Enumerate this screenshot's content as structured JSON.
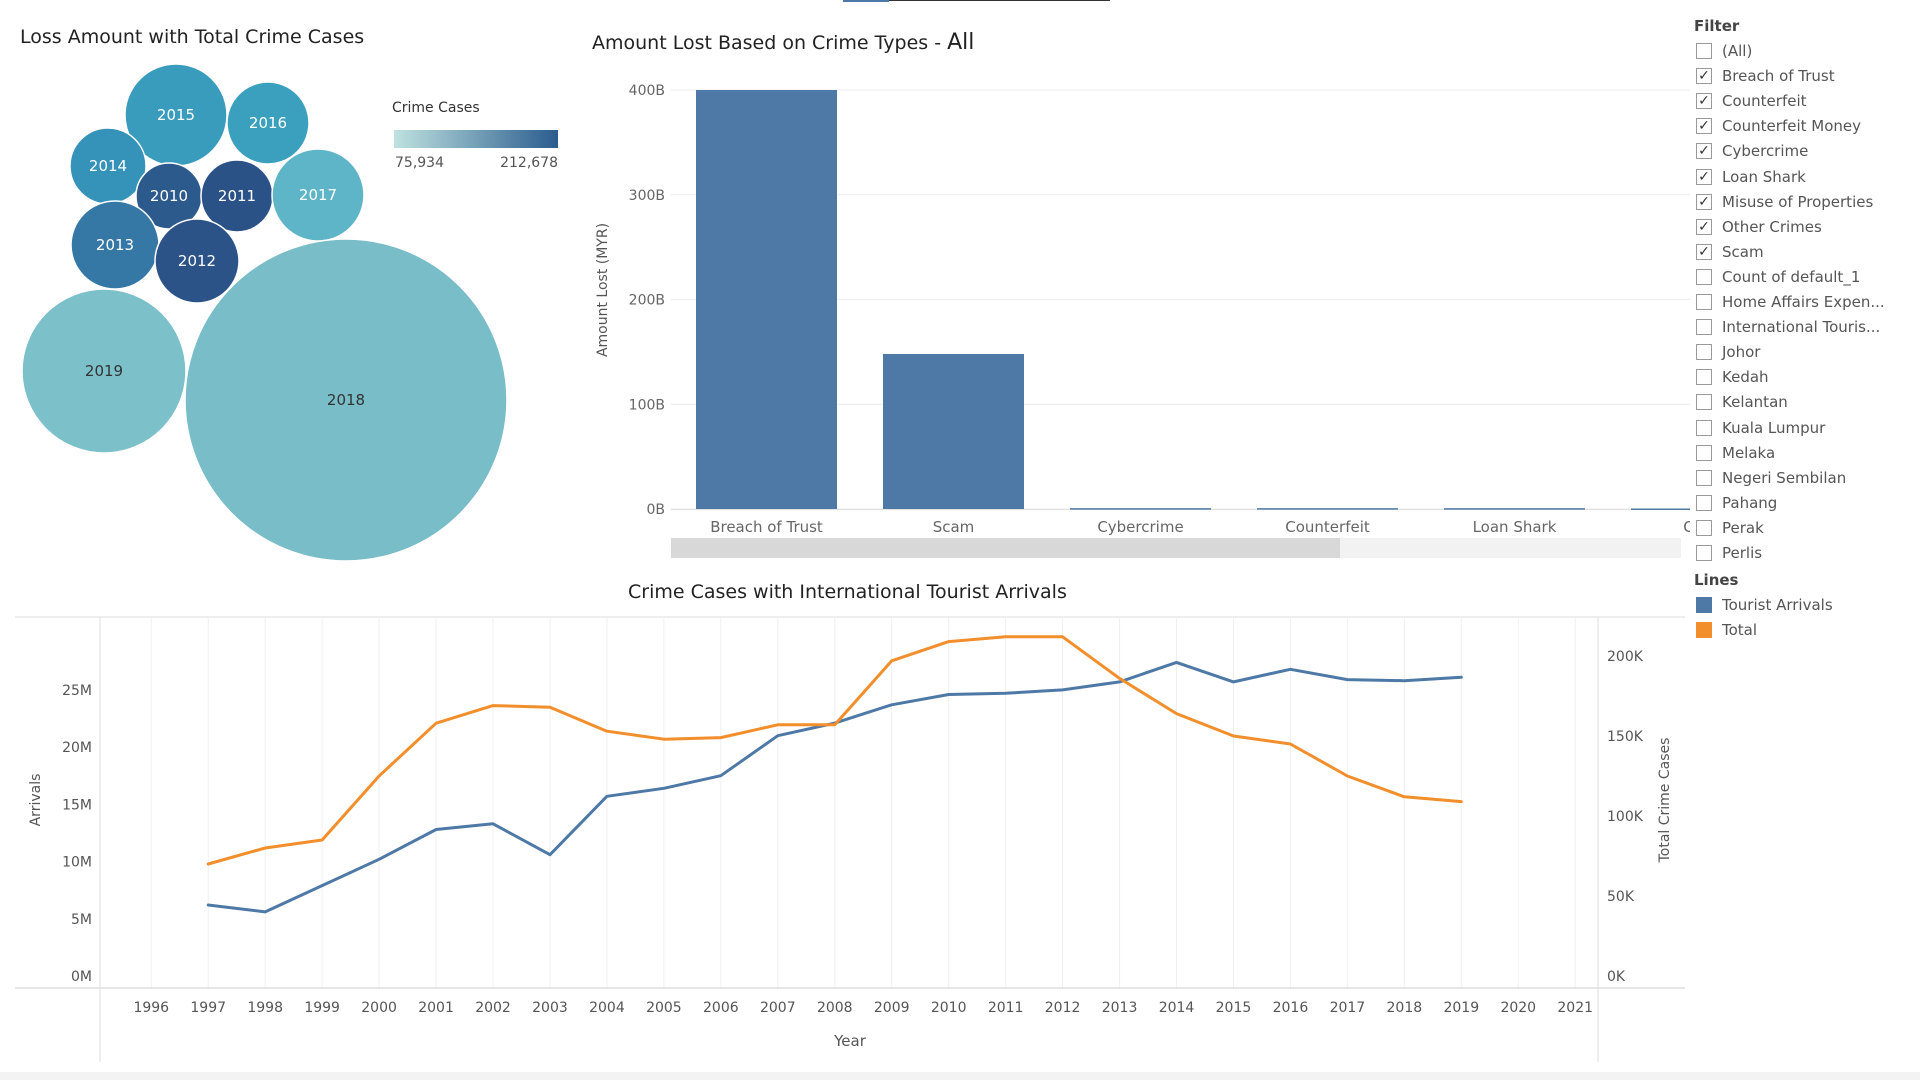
{
  "bubble": {
    "title": "Loss Amount with Total Crime Cases",
    "legend_title": "Crime Cases",
    "legend_min": "75,934",
    "legend_max": "212,678",
    "bubbles": [
      {
        "label": "2015",
        "color": "#3a9cbd"
      },
      {
        "label": "2016",
        "color": "#3aa0bd"
      },
      {
        "label": "2014",
        "color": "#3592b8"
      },
      {
        "label": "2010",
        "color": "#2d5a8c"
      },
      {
        "label": "2011",
        "color": "#2a5287"
      },
      {
        "label": "2017",
        "color": "#5fb5c8"
      },
      {
        "label": "2013",
        "color": "#3578a6"
      },
      {
        "label": "2012",
        "color": "#2b5388"
      },
      {
        "label": "2019",
        "color": "#7cc0ca"
      },
      {
        "label": "2018",
        "color": "#78bdc8"
      }
    ]
  },
  "bar": {
    "title_prefix": "Amount Lost Based on Crime Types - ",
    "title_suffix": "All",
    "ylabel": "Amount Lost (MYR)",
    "yticks": [
      "400B",
      "300B",
      "200B",
      "100B",
      "0B"
    ]
  },
  "filter": {
    "title": "Filter",
    "items": [
      {
        "label": "(All)",
        "checked": false
      },
      {
        "label": "Breach of Trust",
        "checked": true
      },
      {
        "label": "Counterfeit",
        "checked": true
      },
      {
        "label": "Counterfeit Money",
        "checked": true
      },
      {
        "label": "Cybercrime",
        "checked": true
      },
      {
        "label": "Loan Shark",
        "checked": true
      },
      {
        "label": "Misuse of Properties",
        "checked": true
      },
      {
        "label": "Other Crimes",
        "checked": true
      },
      {
        "label": "Scam",
        "checked": true
      },
      {
        "label": "Count of default_1",
        "checked": false
      },
      {
        "label": "Home Affairs Expen...",
        "checked": false
      },
      {
        "label": "International Touris...",
        "checked": false
      },
      {
        "label": "Johor",
        "checked": false
      },
      {
        "label": "Kedah",
        "checked": false
      },
      {
        "label": "Kelantan",
        "checked": false
      },
      {
        "label": "Kuala Lumpur",
        "checked": false
      },
      {
        "label": "Melaka",
        "checked": false
      },
      {
        "label": "Negeri Sembilan",
        "checked": false
      },
      {
        "label": "Pahang",
        "checked": false
      },
      {
        "label": "Perak",
        "checked": false
      },
      {
        "label": "Perlis",
        "checked": false
      }
    ]
  },
  "lines_legend": {
    "title": "Lines",
    "items": [
      {
        "label": "Tourist Arrivals",
        "color": "#4e79a7"
      },
      {
        "label": "Total",
        "color": "#f28e2b"
      }
    ]
  },
  "line": {
    "title": "Crime Cases with International Tourist Arrivals",
    "xlabel": "Year",
    "ylabel_left": "Arrivals",
    "ylabel_right": "Total Crime Cases",
    "yticks_left": [
      "25M",
      "20M",
      "15M",
      "10M",
      "5M",
      "0M"
    ],
    "yticks_right": [
      "200K",
      "150K",
      "100K",
      "50K",
      "0K"
    ]
  },
  "chart_data": [
    {
      "type": "bubble",
      "title": "Loss Amount with Total Crime Cases",
      "color_legend": "Crime Cases",
      "color_range": [
        75934,
        212678
      ],
      "labels": [
        "2010",
        "2011",
        "2012",
        "2013",
        "2014",
        "2015",
        "2016",
        "2017",
        "2018",
        "2019"
      ]
    },
    {
      "type": "bar",
      "title": "Amount Lost Based on Crime Types - All",
      "categories": [
        "Breach of Trust",
        "Scam",
        "Cybercrime",
        "Counterfeit",
        "Loan Shark",
        "Othe"
      ],
      "values": [
        400,
        148,
        0.8,
        0.8,
        0.8,
        0.5
      ],
      "value_unit": "B",
      "ylabel": "Amount Lost (MYR)",
      "ylim": [
        0,
        400
      ],
      "color": "#4e79a7",
      "grid": true
    },
    {
      "type": "line",
      "title": "Crime Cases with International Tourist Arrivals",
      "xlabel": "Year",
      "x_ticks": [
        "1996",
        "1997",
        "1998",
        "1999",
        "2000",
        "2001",
        "2002",
        "2003",
        "2004",
        "2005",
        "2006",
        "2007",
        "2008",
        "2009",
        "2010",
        "2011",
        "2012",
        "2013",
        "2014",
        "2015",
        "2016",
        "2017",
        "2018",
        "2019",
        "2020",
        "2021"
      ],
      "x": [
        1997,
        1998,
        1999,
        2000,
        2001,
        2002,
        2003,
        2004,
        2005,
        2006,
        2007,
        2008,
        2009,
        2010,
        2011,
        2012,
        2013,
        2014,
        2015,
        2016,
        2017,
        2018,
        2019
      ],
      "ylim_left": [
        0,
        29
      ],
      "ylim_right": [
        0,
        225
      ],
      "grid": true,
      "series": [
        {
          "name": "Tourist Arrivals",
          "axis": "left",
          "unit": "M",
          "color": "#4e79a7",
          "values": [
            6.2,
            5.6,
            7.9,
            10.2,
            12.8,
            13.3,
            10.6,
            15.7,
            16.4,
            17.5,
            21.0,
            22.1,
            23.7,
            24.6,
            24.7,
            25.0,
            25.7,
            27.4,
            25.7,
            26.8,
            25.9,
            25.8,
            26.1
          ]
        },
        {
          "name": "Total",
          "axis": "right",
          "unit": "K",
          "color": "#f28e2b",
          "values": [
            70,
            80,
            85,
            125,
            158,
            169,
            168,
            153,
            148,
            149,
            157,
            157,
            197,
            209,
            212,
            212,
            186,
            164,
            150,
            145,
            125,
            112,
            109
          ]
        }
      ]
    }
  ]
}
